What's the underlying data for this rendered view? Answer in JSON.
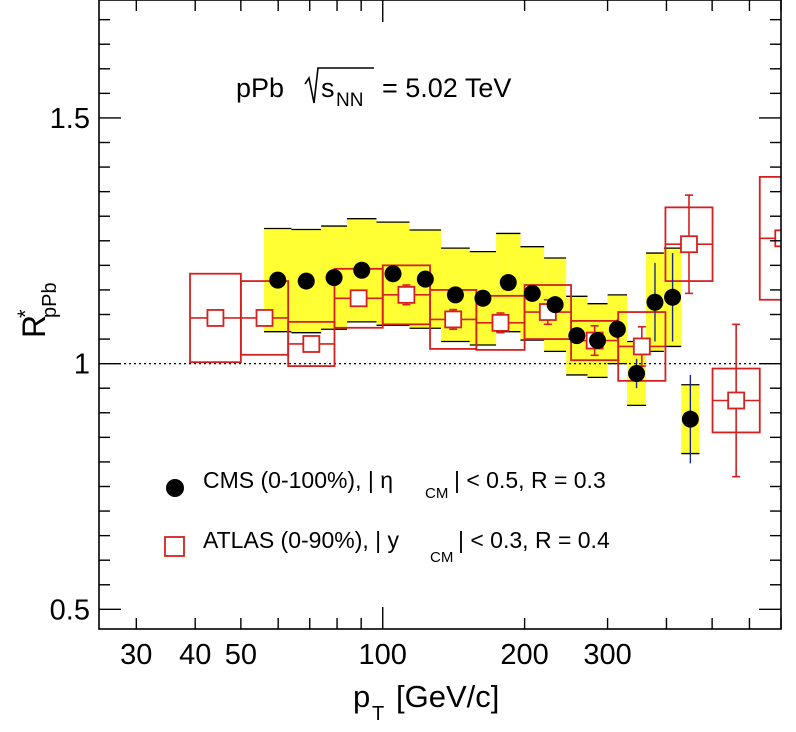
{
  "chart_data": {
    "type": "scatter",
    "title": "pPb √sNN = 5.02 TeV",
    "annotation": {
      "text": "pPb",
      "sqrt_sub": "s",
      "sqrt_subscript": "NN",
      "rest": "= 5.02 TeV"
    },
    "xlabel": {
      "main": "p",
      "sub": "T",
      "unit": "[GeV/c]"
    },
    "ylabel": {
      "main": "R",
      "sup": "*",
      "sub": "pPb"
    },
    "x_scale": "log",
    "xlim": [
      25,
      700
    ],
    "ylim": [
      0.46,
      1.74
    ],
    "x_ticks": [
      {
        "value": 30,
        "label": "30"
      },
      {
        "value": 40,
        "label": "40"
      },
      {
        "value": 50,
        "label": "50"
      },
      {
        "value": 100,
        "label": "100"
      },
      {
        "value": 200,
        "label": "200"
      },
      {
        "value": 300,
        "label": "300"
      }
    ],
    "y_ticks": [
      {
        "value": 0.5,
        "label": "0.5"
      },
      {
        "value": 1.0,
        "label": "1"
      },
      {
        "value": 1.5,
        "label": "1.5"
      }
    ],
    "reference_line": 1.0,
    "series": [
      {
        "name": "CMS",
        "legend": {
          "prefix": "CMS  (0-100%), | η",
          "sub": "CM",
          "suffix": "| < 0.5, R = 0.3"
        },
        "marker": "filled-circle",
        "color": "#000000",
        "syst_fill": "#ffff33",
        "points": [
          {
            "xlo": 56,
            "xhi": 64,
            "y": 1.17,
            "sys": 0.105,
            "stat": 0.005
          },
          {
            "xlo": 64,
            "xhi": 74,
            "y": 1.168,
            "sys": 0.105,
            "stat": 0.005
          },
          {
            "xlo": 74,
            "xhi": 84,
            "y": 1.175,
            "sys": 0.105,
            "stat": 0.005
          },
          {
            "xlo": 84,
            "xhi": 97,
            "y": 1.19,
            "sys": 0.105,
            "stat": 0.005
          },
          {
            "xlo": 97,
            "xhi": 114,
            "y": 1.183,
            "sys": 0.105,
            "stat": 0.005
          },
          {
            "xlo": 114,
            "xhi": 133,
            "y": 1.172,
            "sys": 0.1,
            "stat": 0.005
          },
          {
            "xlo": 133,
            "xhi": 153,
            "y": 1.14,
            "sys": 0.095,
            "stat": 0.006
          },
          {
            "xlo": 153,
            "xhi": 174,
            "y": 1.133,
            "sys": 0.095,
            "stat": 0.006
          },
          {
            "xlo": 174,
            "xhi": 196,
            "y": 1.165,
            "sys": 0.1,
            "stat": 0.007
          },
          {
            "xlo": 196,
            "xhi": 220,
            "y": 1.143,
            "sys": 0.095,
            "stat": 0.008
          },
          {
            "xlo": 220,
            "xhi": 245,
            "y": 1.12,
            "sys": 0.095,
            "stat": 0.01
          },
          {
            "xlo": 245,
            "xhi": 272,
            "y": 1.057,
            "sys": 0.08,
            "stat": 0.012
          },
          {
            "xlo": 272,
            "xhi": 300,
            "y": 1.047,
            "sys": 0.075,
            "stat": 0.015
          },
          {
            "xlo": 300,
            "xhi": 330,
            "y": 1.07,
            "sys": 0.07,
            "stat": 0.02
          },
          {
            "xlo": 330,
            "xhi": 362,
            "y": 0.98,
            "sys": 0.065,
            "stat": 0.03
          },
          {
            "xlo": 362,
            "xhi": 395,
            "y": 1.125,
            "sys": 0.1,
            "stat": 0.08
          },
          {
            "xlo": 395,
            "xhi": 430,
            "y": 1.135,
            "sys": 0.1,
            "stat": 0.09
          },
          {
            "xlo": 430,
            "xhi": 470,
            "y": 0.887,
            "sys": 0.07,
            "stat": 0.09
          }
        ]
      },
      {
        "name": "ATLAS",
        "legend": {
          "prefix": "ATLAS (0-90%), | y",
          "sub": "CM",
          "suffix": "| < 0.3, R = 0.4"
        },
        "marker": "open-square",
        "color": "#d62020",
        "points": [
          {
            "xlo": 39,
            "xhi": 50,
            "y": 1.093,
            "sys": 0.09,
            "stat": 0.015
          },
          {
            "xlo": 50,
            "xhi": 63,
            "y": 1.093,
            "sys": 0.075,
            "stat": 0.01
          },
          {
            "xlo": 63,
            "xhi": 79,
            "y": 1.04,
            "sys": 0.045,
            "stat": 0.008
          },
          {
            "xlo": 79,
            "xhi": 100,
            "y": 1.133,
            "sys": 0.06,
            "stat": 0.015
          },
          {
            "xlo": 100,
            "xhi": 126,
            "y": 1.14,
            "sys": 0.06,
            "stat": 0.02
          },
          {
            "xlo": 126,
            "xhi": 158,
            "y": 1.09,
            "sys": 0.06,
            "stat": 0.02
          },
          {
            "xlo": 158,
            "xhi": 200,
            "y": 1.083,
            "sys": 0.055,
            "stat": 0.02
          },
          {
            "xlo": 200,
            "xhi": 251,
            "y": 1.105,
            "sys": 0.055,
            "stat": 0.025
          },
          {
            "xlo": 251,
            "xhi": 316,
            "y": 1.047,
            "sys": 0.04,
            "stat": 0.03
          },
          {
            "xlo": 316,
            "xhi": 398,
            "y": 1.035,
            "sys": 0.07,
            "stat": 0.04
          },
          {
            "xlo": 398,
            "xhi": 501,
            "y": 1.243,
            "sys": 0.075,
            "stat": 0.1
          },
          {
            "xlo": 501,
            "xhi": 631,
            "y": 0.925,
            "sys": 0.065,
            "stat": 0.155
          },
          {
            "xlo": 631,
            "xhi": 794,
            "y": 1.255,
            "sys": 0.125,
            "stat": 0.51
          }
        ]
      }
    ],
    "legend_position": "bottom-left"
  }
}
